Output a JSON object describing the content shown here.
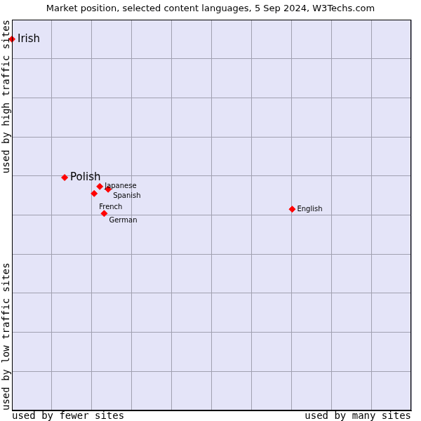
{
  "chart_data": {
    "type": "scatter",
    "title": "Market position, selected content languages, 5 Sep 2024, W3Techs.com",
    "xlabel": [
      "used by fewer sites",
      "used by many sites"
    ],
    "ylabel": [
      "used by low traffic sites",
      "used by high traffic sites"
    ],
    "points": [
      {
        "label": "Irish",
        "x": 0,
        "y": 9.5
      },
      {
        "label": "Polish",
        "x": 1.32,
        "y": 5.96
      },
      {
        "label": "Japanese",
        "x": 2.2,
        "y": 5.73
      },
      {
        "label": "Spanish",
        "x": 2.41,
        "y": 5.66
      },
      {
        "label": "French",
        "x": 2.06,
        "y": 5.55
      },
      {
        "label": "German",
        "x": 2.31,
        "y": 5.04
      },
      {
        "label": "English",
        "x": 7.02,
        "y": 5.15
      }
    ],
    "xlim": [
      0,
      10
    ],
    "ylim": [
      0,
      10
    ],
    "xticks": [
      0,
      1,
      2,
      3,
      4,
      5,
      6,
      7,
      8,
      9,
      10
    ],
    "yticks": [
      0,
      1,
      2,
      3,
      4,
      5,
      6,
      7,
      8,
      9,
      10
    ],
    "grid": true,
    "tick_labels": false,
    "color": "#ff0000",
    "marker": "diamond"
  }
}
